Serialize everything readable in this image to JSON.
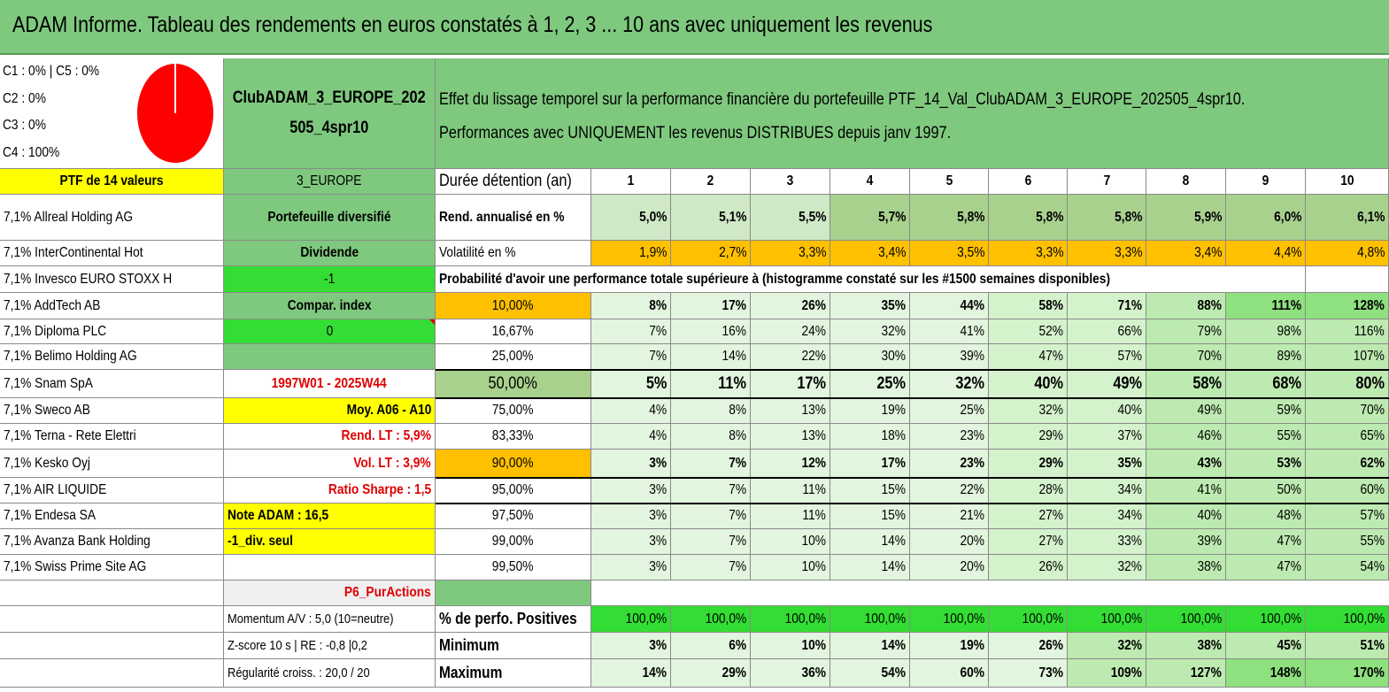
{
  "title": "ADAM Informe. Tableau des rendements en euros constatés à 1, 2, 3 ... 10 ans avec uniquement les revenus",
  "colors": {
    "header_green": "#7fc97f",
    "mid_green": "#a9d18e",
    "pale_green": "#e2f5de",
    "bright_green": "#33dd33",
    "yellow": "#ffff00",
    "orange": "#ffc000",
    "gray": "#f0f0f0",
    "red_text": "#e00000",
    "pie_red": "#ff0000"
  },
  "pie": {
    "legend": [
      "C1 : 0% | C5 : 0%",
      "C2 : 0%",
      "C3 : 0%",
      "C4 : 100%"
    ],
    "shares": [
      0,
      0,
      0,
      1
    ]
  },
  "portfolio": {
    "name": "ClubADAM_3_EUROPE_202505_4spr10",
    "name_line1": "ClubADAM_3_EUROPE_202",
    "name_line2": "505_4spr10",
    "count_label": "PTF de 14 valeurs",
    "region": "3_EUROPE",
    "type": "Portefeuille diversifié",
    "income": "Dividende",
    "flag1": "-1",
    "compare_label": "Compar. index",
    "compare_value": "0",
    "period": "1997W01 - 2025W44",
    "avg": "Moy. A06 - A10",
    "rend_lt": "Rend. LT : 5,9%",
    "vol_lt": "Vol. LT : 3,9%",
    "sharpe": "Ratio Sharpe : 1,5",
    "note": "Note ADAM : 16,5",
    "div_seul": "-1_div. seul",
    "p6": "P6_PurActions",
    "momentum": "Momentum A/V : 5,0 (10=neutre)",
    "zscore": "Z-score 10 s | RE : -0,8 |0,2",
    "regularite": "Régularité croiss. : 20,0 / 20"
  },
  "description": {
    "line1": "Effet du lissage temporel sur la performance financière du portefeuille PTF_14_Val_ClubADAM_3_EUROPE_202505_4spr10.",
    "line2": "Performances avec UNIQUEMENT les revenus DISTRIBUES depuis janv 1997."
  },
  "holdings": [
    "7,1% Allreal Holding AG",
    "7,1% InterContinental Hot",
    "7,1% Invesco EURO STOXX H",
    "7,1% AddTech AB",
    "7,1% Diploma PLC",
    "7,1% Belimo Holding AG",
    "7,1% Snam SpA",
    "7,1% Sweco AB",
    "7,1% Terna - Rete Elettri",
    "7,1% Kesko Oyj",
    "7,1% AIR LIQUIDE",
    "7,1% Endesa SA",
    "7,1% Avanza Bank Holding",
    "7,1% Swiss Prime Site AG"
  ],
  "table": {
    "duration_label": "Durée détention (an)",
    "years": [
      "1",
      "2",
      "3",
      "4",
      "5",
      "6",
      "7",
      "8",
      "9",
      "10"
    ],
    "rend_label": "Rend. annualisé en %",
    "rend": [
      "5,0%",
      "5,1%",
      "5,5%",
      "5,7%",
      "5,8%",
      "5,8%",
      "5,8%",
      "5,9%",
      "6,0%",
      "6,1%"
    ],
    "vol_label": "Volatilité en %",
    "vol": [
      "1,9%",
      "2,7%",
      "3,3%",
      "3,4%",
      "3,5%",
      "3,3%",
      "3,3%",
      "3,4%",
      "4,4%",
      "4,8%"
    ],
    "prob_title": "Probabilité d'avoir une performance totale supérieure à (histogramme constaté sur les #1500 semaines disponibles)",
    "quantiles": [
      {
        "label": "10,00%",
        "values": [
          "8%",
          "17%",
          "26%",
          "35%",
          "44%",
          "58%",
          "71%",
          "88%",
          "111%",
          "128%"
        ]
      },
      {
        "label": "16,67%",
        "values": [
          "7%",
          "16%",
          "24%",
          "32%",
          "41%",
          "52%",
          "66%",
          "79%",
          "98%",
          "116%"
        ]
      },
      {
        "label": "25,00%",
        "values": [
          "7%",
          "14%",
          "22%",
          "30%",
          "39%",
          "47%",
          "57%",
          "70%",
          "89%",
          "107%"
        ]
      },
      {
        "label": "50,00%",
        "values": [
          "5%",
          "11%",
          "17%",
          "25%",
          "32%",
          "40%",
          "49%",
          "58%",
          "68%",
          "80%"
        ]
      },
      {
        "label": "75,00%",
        "values": [
          "4%",
          "8%",
          "13%",
          "19%",
          "25%",
          "32%",
          "40%",
          "49%",
          "59%",
          "70%"
        ]
      },
      {
        "label": "83,33%",
        "values": [
          "4%",
          "8%",
          "13%",
          "18%",
          "23%",
          "29%",
          "37%",
          "46%",
          "55%",
          "65%"
        ]
      },
      {
        "label": "90,00%",
        "values": [
          "3%",
          "7%",
          "12%",
          "17%",
          "23%",
          "29%",
          "35%",
          "43%",
          "53%",
          "62%"
        ]
      },
      {
        "label": "95,00%",
        "values": [
          "3%",
          "7%",
          "11%",
          "15%",
          "22%",
          "28%",
          "34%",
          "41%",
          "50%",
          "60%"
        ]
      },
      {
        "label": "97,50%",
        "values": [
          "3%",
          "7%",
          "11%",
          "15%",
          "21%",
          "27%",
          "34%",
          "40%",
          "48%",
          "57%"
        ]
      },
      {
        "label": "99,00%",
        "values": [
          "3%",
          "7%",
          "10%",
          "14%",
          "20%",
          "27%",
          "33%",
          "39%",
          "47%",
          "55%"
        ]
      },
      {
        "label": "99,50%",
        "values": [
          "3%",
          "7%",
          "10%",
          "14%",
          "20%",
          "26%",
          "32%",
          "38%",
          "47%",
          "54%"
        ]
      }
    ],
    "pos_label": "% de perfo. Positives",
    "pos": [
      "100,0%",
      "100,0%",
      "100,0%",
      "100,0%",
      "100,0%",
      "100,0%",
      "100,0%",
      "100,0%",
      "100,0%",
      "100,0%"
    ],
    "min_label": "Minimum",
    "min": [
      "3%",
      "6%",
      "10%",
      "14%",
      "19%",
      "26%",
      "32%",
      "38%",
      "45%",
      "51%"
    ],
    "max_label": "Maximum",
    "max": [
      "14%",
      "29%",
      "36%",
      "54%",
      "60%",
      "73%",
      "109%",
      "127%",
      "148%",
      "170%"
    ]
  }
}
